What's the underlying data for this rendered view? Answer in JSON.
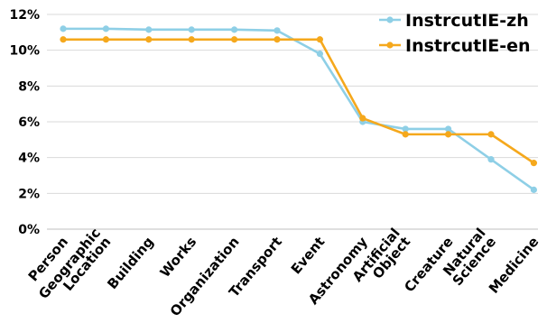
{
  "chart_data": {
    "type": "line",
    "categories": [
      [
        "Person"
      ],
      [
        "Geographic",
        "Location"
      ],
      [
        "Building"
      ],
      [
        "Works"
      ],
      [
        "Organization"
      ],
      [
        "Transport"
      ],
      [
        "Event"
      ],
      [
        "Astronomy"
      ],
      [
        "Artificial",
        "Object"
      ],
      [
        "Creature"
      ],
      [
        "Natural",
        "Science"
      ],
      [
        "Medicine"
      ]
    ],
    "series": [
      {
        "name": "InstrcutIE-zh",
        "color": "#8ecfe6",
        "values": [
          11.2,
          11.2,
          11.15,
          11.15,
          11.15,
          11.1,
          9.8,
          6.0,
          5.6,
          5.6,
          3.9,
          2.2
        ]
      },
      {
        "name": "InstrcutIE-en",
        "color": "#f5a81c",
        "values": [
          10.6,
          10.6,
          10.6,
          10.6,
          10.6,
          10.6,
          10.6,
          6.2,
          5.3,
          5.3,
          5.3,
          3.7
        ]
      }
    ],
    "y_ticks": [
      "0%",
      "2%",
      "4%",
      "6%",
      "8%",
      "10%",
      "12%"
    ],
    "ylim": [
      0,
      12
    ],
    "ytick_step": 2,
    "grid": "horizontal",
    "legend_position": "top-right"
  }
}
